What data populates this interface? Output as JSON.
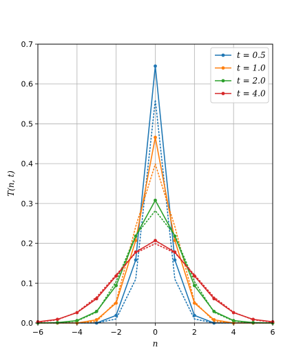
{
  "chart_data": {
    "type": "line",
    "xlabel": "n",
    "ylabel": "T(n, t)",
    "xlim": [
      -6,
      6
    ],
    "ylim": [
      0,
      0.7
    ],
    "xticks": [
      -6,
      -4,
      -2,
      0,
      2,
      4,
      6
    ],
    "yticks": [
      0.0,
      0.1,
      0.2,
      0.3,
      0.4,
      0.5,
      0.6,
      0.7
    ],
    "xtick_labels": [
      "−6",
      "−4",
      "−2",
      "0",
      "2",
      "4",
      "6"
    ],
    "ytick_labels": [
      "0.0",
      "0.1",
      "0.2",
      "0.3",
      "0.4",
      "0.5",
      "0.6",
      "0.7"
    ],
    "grid": true,
    "legend_position": "top-right",
    "x": [
      -6,
      -5,
      -4,
      -3,
      -2,
      -1,
      0,
      1,
      2,
      3,
      4,
      5,
      6
    ],
    "series": [
      {
        "name": "t = 0.5",
        "color": "#1f77b4",
        "values": [
          0.0,
          0.0,
          0.0,
          0.0,
          0.019,
          0.158,
          0.645,
          0.158,
          0.019,
          0.0,
          0.0,
          0.0,
          0.0
        ],
        "dotted": [
          0.0,
          0.0,
          0.0,
          0.0,
          0.01,
          0.11,
          0.56,
          0.11,
          0.01,
          0.0,
          0.0,
          0.0,
          0.0
        ]
      },
      {
        "name": "t = 1.0",
        "color": "#ff7f0e",
        "values": [
          0.0,
          0.0,
          0.0,
          0.008,
          0.05,
          0.207,
          0.466,
          0.207,
          0.05,
          0.008,
          0.0,
          0.0,
          0.0
        ],
        "dotted": [
          0.0,
          0.0,
          0.0,
          0.004,
          0.054,
          0.242,
          0.399,
          0.242,
          0.054,
          0.004,
          0.0,
          0.0,
          0.0
        ]
      },
      {
        "name": "t = 2.0",
        "color": "#2ca02c",
        "values": [
          0.0,
          0.001,
          0.006,
          0.029,
          0.094,
          0.218,
          0.308,
          0.218,
          0.094,
          0.029,
          0.006,
          0.001,
          0.0
        ],
        "dotted": [
          0.0,
          0.0,
          0.005,
          0.027,
          0.104,
          0.22,
          0.282,
          0.22,
          0.104,
          0.027,
          0.005,
          0.0,
          0.0
        ]
      },
      {
        "name": "t = 4.0",
        "color": "#d62728",
        "values": [
          0.003,
          0.009,
          0.026,
          0.061,
          0.118,
          0.178,
          0.207,
          0.178,
          0.118,
          0.061,
          0.026,
          0.009,
          0.003
        ],
        "dotted": [
          0.002,
          0.008,
          0.027,
          0.065,
          0.121,
          0.176,
          0.199,
          0.176,
          0.121,
          0.065,
          0.027,
          0.008,
          0.002
        ]
      }
    ]
  }
}
